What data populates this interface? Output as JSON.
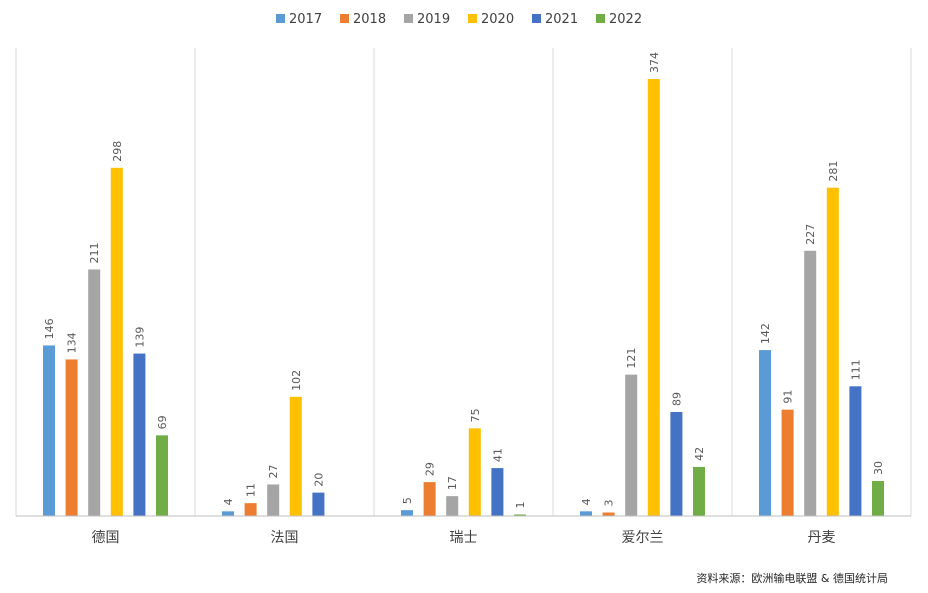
{
  "chart_data": {
    "type": "bar",
    "categories": [
      "德国",
      "法国",
      "瑞士",
      "爱尔兰",
      "丹麦"
    ],
    "series": [
      {
        "name": "2017",
        "color": "#5B9BD5",
        "values": [
          146,
          4,
          5,
          4,
          142
        ]
      },
      {
        "name": "2018",
        "color": "#ED7D31",
        "values": [
          134,
          11,
          29,
          3,
          91
        ]
      },
      {
        "name": "2019",
        "color": "#A5A5A5",
        "values": [
          211,
          27,
          17,
          121,
          227
        ]
      },
      {
        "name": "2020",
        "color": "#FFC000",
        "values": [
          298,
          102,
          75,
          374,
          281
        ]
      },
      {
        "name": "2021",
        "color": "#4472C4",
        "values": [
          139,
          20,
          41,
          89,
          111
        ]
      },
      {
        "name": "2022",
        "color": "#70AD47",
        "values": [
          69,
          null,
          1,
          42,
          30
        ]
      }
    ],
    "ylim": [
      0,
      400
    ],
    "grid": "vertical category separators",
    "legend": "top-center",
    "data_labels": true,
    "source": "资料来源：欧洲输电联盟 & 德国统计局"
  }
}
